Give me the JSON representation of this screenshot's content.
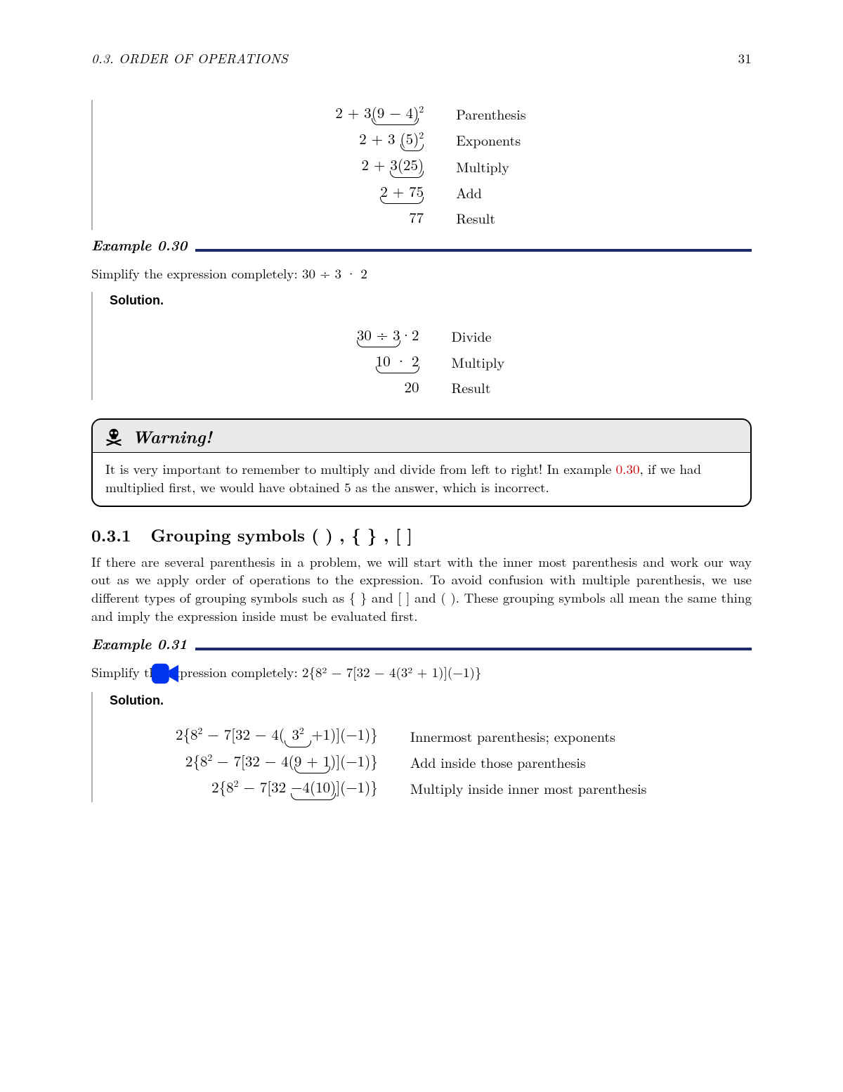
{
  "header": {
    "section_label": "0.3.   ORDER OF OPERATIONS",
    "page_number": "31"
  },
  "block_pre30": {
    "rows": [
      {
        "expr": "2 + 3<span class='ub'>(9 − 4)</span><span class='sup'>2</span>",
        "note": "Parenthesis"
      },
      {
        "expr": "2 + 3 <span class='ub'>(5)<span class='sup'>2</span></span>",
        "note": "Exponents"
      },
      {
        "expr": "2 + <span class='ub'>3(25)</span>",
        "note": "Multiply"
      },
      {
        "expr": "<span class='ub'>2 + 75</span>",
        "note": "Add"
      },
      {
        "expr": "77",
        "note": "Result"
      }
    ]
  },
  "example30": {
    "label": "Example 0.30"
  },
  "prompt30": {
    "text": "Simplify the expression completely:  30 ÷ 3 · 2"
  },
  "solution30": {
    "label": "Solution.",
    "rows": [
      {
        "expr": "<span class='ub'>30 ÷ 3</span>·2",
        "note": "Divide"
      },
      {
        "expr": "<span class='ub'>10 · 2</span>",
        "note": "Multiply"
      },
      {
        "expr": "20",
        "note": "Result"
      }
    ]
  },
  "warning": {
    "title": "Warning!",
    "body_before": "It is very important to remember to multiply and divide from left to right! In example ",
    "link": "0.30",
    "body_after": ", if we had multiplied first, we would have obtained 5 as the answer, which is incorrect."
  },
  "subsection": {
    "number": "0.3.1",
    "title": "Grouping symbols (   ) , {   } , [   ]",
    "body": "If there are several parenthesis in a problem, we will start with the inner most parenthesis and work our way out as we apply order of operations to the expression. To avoid confusion with multiple parenthesis, we use different types of grouping symbols such as { } and [ ] and ( ). These grouping symbols all mean the same thing and imply the expression inside must be evaluated first."
  },
  "example31": {
    "label": "Example 0.31"
  },
  "prompt31": {
    "text": "Simplify the expression completely:  2{8² − 7[32 − 4(3² + 1)](−1)}"
  },
  "solution31": {
    "label": "Solution.",
    "rows": [
      {
        "expr": "2{8<span class='sup'>2</span> − 7[32 − 4(<span class='ub'>&nbsp;3<span class='sup'>2</span>&nbsp;</span>+1)](−1)}",
        "note": "Innermost parenthesis; exponents"
      },
      {
        "expr": "2{8<span class='sup'>2</span> − 7[32 − 4(<span class='ub'>9 + 1</span>)](−1)}",
        "note": "Add inside those parenthesis"
      },
      {
        "expr": "2{8<span class='sup'>2</span> − 7[32 <span class='ub'>−4(10)</span>](−1)}",
        "note": "Multiply inside inner most parenthesis"
      }
    ]
  },
  "colors": {
    "navy": "#1a2a6b",
    "red": "#cc0000",
    "blue_icon": "#0033ee",
    "grey_bg": "#e9e9e9",
    "text": "#000000"
  }
}
